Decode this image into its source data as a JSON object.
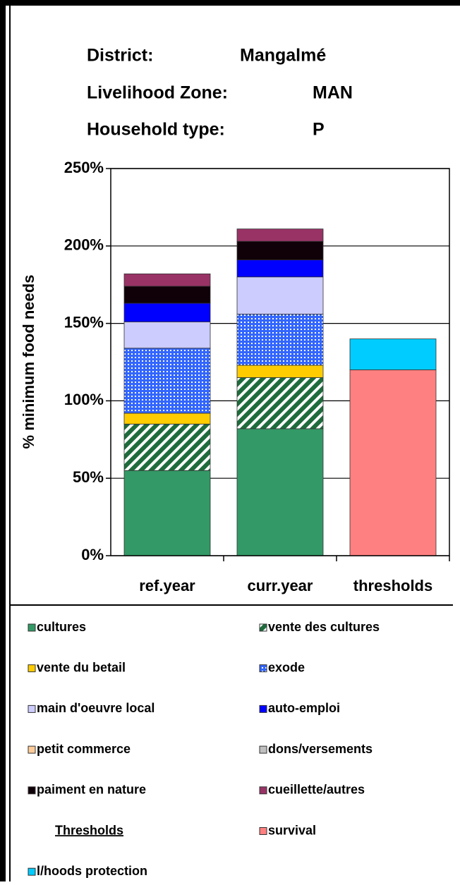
{
  "header": {
    "rows": [
      [
        "District:",
        "Mangalmé"
      ],
      [
        "Livelihood Zone:",
        "MAN"
      ],
      [
        "Household type:",
        "P"
      ]
    ]
  },
  "chart_data": {
    "type": "stacked_bar",
    "y_label": "% minimum food needs",
    "categories": [
      "ref.year",
      "curr.year",
      "thresholds"
    ],
    "ylim": [
      0,
      250
    ],
    "yticks": [
      {
        "value": 0,
        "label": "0%"
      },
      {
        "value": 50,
        "label": "50%"
      },
      {
        "value": 100,
        "label": "100%"
      },
      {
        "value": 150,
        "label": "150%"
      },
      {
        "value": 200,
        "label": "200%"
      },
      {
        "value": 250,
        "label": "250%"
      }
    ],
    "grid": true,
    "legend_heading": "Thresholds",
    "series": [
      {
        "name": "cultures",
        "color": "#339966",
        "values": [
          55,
          82,
          0
        ]
      },
      {
        "name": "vente des cultures",
        "color": "#1e6b3c",
        "pattern": "diagonal",
        "values": [
          30,
          33,
          0
        ]
      },
      {
        "name": "vente du betail",
        "color": "#ffcc00",
        "values": [
          7,
          8,
          0
        ]
      },
      {
        "name": "exode",
        "color": "#3366ff",
        "pattern": "grid",
        "values": [
          42,
          33,
          0
        ]
      },
      {
        "name": "main d'oeuvre local",
        "color": "#ccccff",
        "values": [
          17,
          24,
          0
        ]
      },
      {
        "name": "auto-emploi",
        "color": "#0000ff",
        "values": [
          12,
          11,
          0
        ]
      },
      {
        "name": "petit commerce",
        "color": "#ffcc99",
        "values": [
          0,
          0,
          0
        ]
      },
      {
        "name": "dons/versements",
        "color": "#c0c0c0",
        "values": [
          0,
          0,
          0
        ]
      },
      {
        "name": "paiment en nature",
        "color": "#100008",
        "values": [
          11,
          12,
          0
        ]
      },
      {
        "name": "cueillette/autres",
        "color": "#993366",
        "values": [
          8,
          8,
          0
        ]
      },
      {
        "name": "survival",
        "color": "#ff8080",
        "values": [
          0,
          0,
          120
        ]
      },
      {
        "name": "l/hoods protection",
        "color": "#00ccff",
        "values": [
          0,
          0,
          20
        ]
      }
    ]
  }
}
